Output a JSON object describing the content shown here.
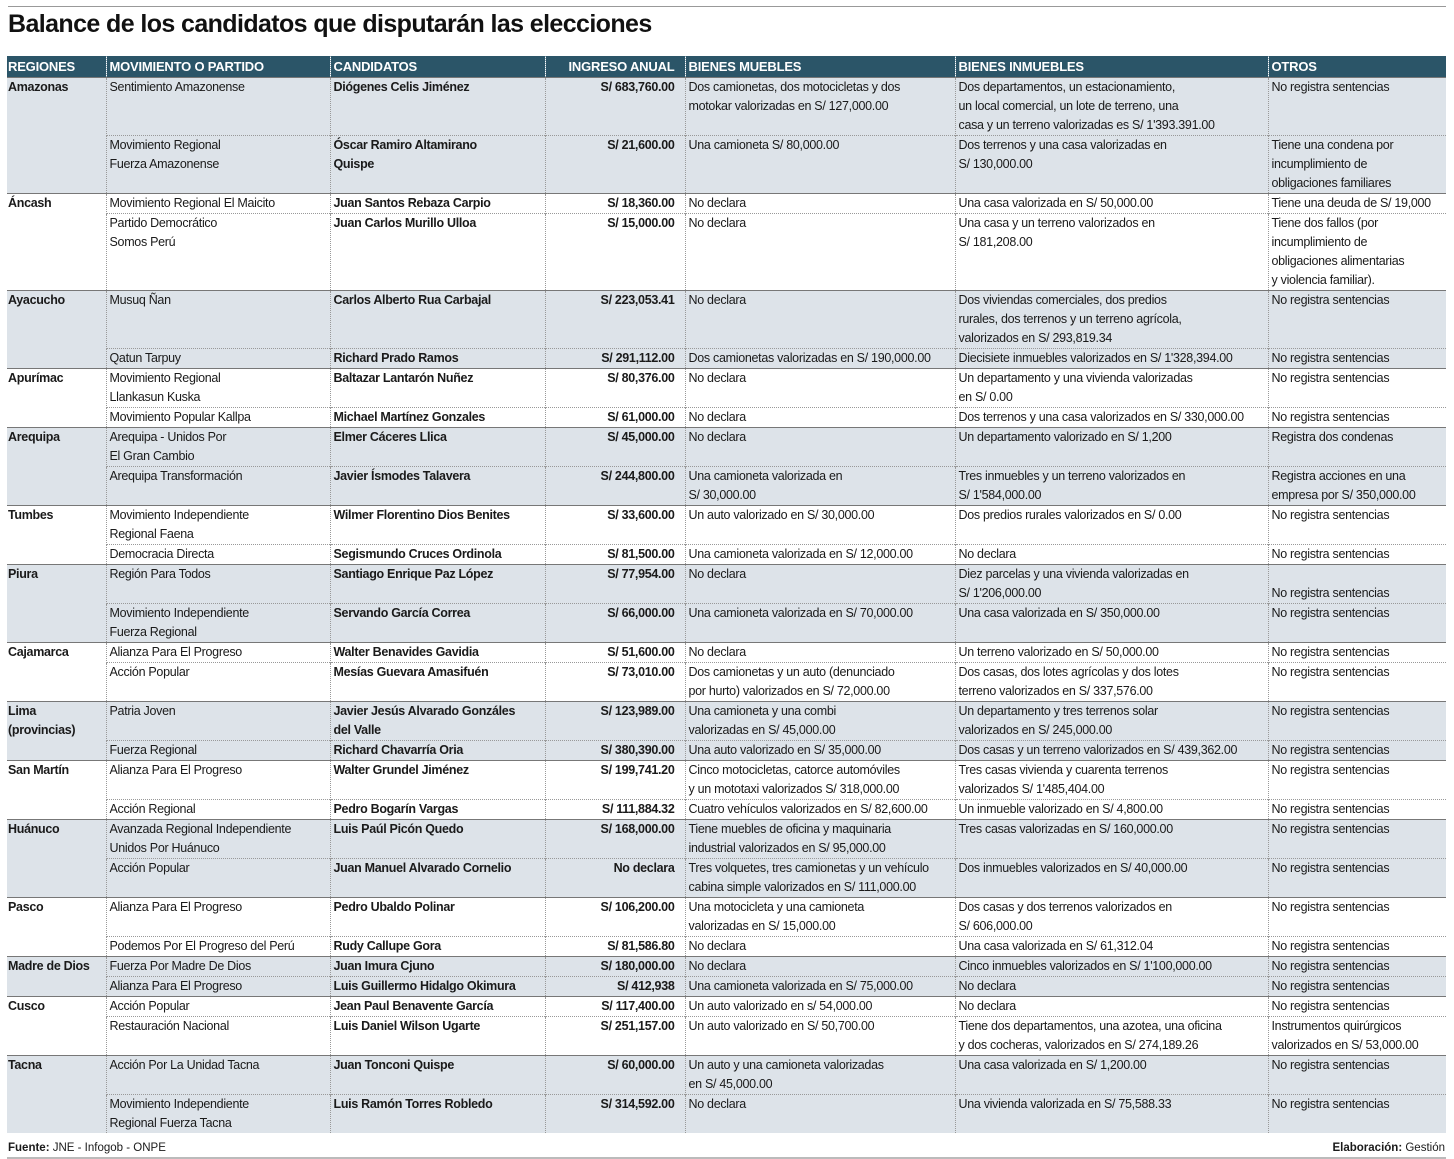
{
  "title": "Balance de los candidatos que disputarán las elecciones",
  "headers": [
    "REGIONES",
    "MOVIMIENTO O PARTIDO",
    "CANDIDATOS",
    "INGRESO ANUAL",
    "BIENES MUEBLES",
    "BIENES INMUEBLES",
    "OTROS"
  ],
  "colors": {
    "header_bg": "#2b5568",
    "shaded_row": "#dde3e9"
  },
  "regions": [
    {
      "name": "Amazonas",
      "rows": [
        {
          "party": "Sentimiento Amazonense",
          "candidate": "Diógenes Celis Jiménez",
          "income": "S/ 683,760.00",
          "muebles": "Dos camionetas, dos motocicletas y dos\nmotokar valorizadas en S/ 127,000.00",
          "inmuebles": "Dos departamentos, un estacionamiento,\nun local comercial, un lote de terreno, una\ncasa y un terreno valorizadas es S/ 1'393.391.00",
          "otros": "No registra sentencias"
        },
        {
          "party": "Movimiento Regional\nFuerza Amazonense",
          "candidate": "Óscar Ramiro Altamirano\nQuispe",
          "income": "S/ 21,600.00",
          "muebles": "Una camioneta S/ 80,000.00",
          "inmuebles": "Dos terrenos y una casa valorizadas en\nS/ 130,000.00",
          "otros": "Tiene una condena por\nincumplimiento de\nobligaciones familiares"
        }
      ]
    },
    {
      "name": "Áncash",
      "rows": [
        {
          "party": "Movimiento Regional El Maicito",
          "candidate": "Juan Santos Rebaza Carpio",
          "income": "S/ 18,360.00",
          "muebles": "No declara",
          "inmuebles": "Una casa valorizada en S/ 50,000.00",
          "otros": "Tiene una deuda de S/ 19,000"
        },
        {
          "party": "Partido Democrático\nSomos Perú",
          "candidate": "Juan Carlos Murillo Ulloa",
          "income": "S/ 15,000.00",
          "muebles": "No declara",
          "inmuebles": "Una casa y un terreno valorizados en\nS/ 181,208.00",
          "otros": "Tiene dos fallos (por\nincumplimiento de\nobligaciones alimentarias\ny violencia familiar)."
        }
      ]
    },
    {
      "name": "Ayacucho",
      "rows": [
        {
          "party": "Musuq Ñan",
          "candidate": "Carlos Alberto Rua Carbajal",
          "income": "S/ 223,053.41",
          "muebles": "No declara",
          "inmuebles": "Dos viviendas comerciales, dos predios\nrurales, dos terrenos y un terreno agrícola,\nvalorizados en S/ 293,819.34",
          "otros": "No registra sentencias"
        },
        {
          "party": "Qatun Tarpuy",
          "candidate": "Richard Prado Ramos",
          "income": "S/ 291,112.00",
          "muebles": "Dos camionetas valorizadas en S/ 190,000.00",
          "inmuebles": "Diecisiete inmuebles valorizados en S/ 1'328,394.00",
          "otros": "No registra sentencias"
        }
      ]
    },
    {
      "name": "Apurímac",
      "rows": [
        {
          "party": "Movimiento Regional\nLlankasun Kuska",
          "candidate": "Baltazar Lantarón Nuñez",
          "income": "S/ 80,376.00",
          "muebles": "No declara",
          "inmuebles": "Un departamento y una vivienda valorizadas\nen S/ 0.00",
          "otros": "No registra sentencias"
        },
        {
          "party": "Movimiento Popular Kallpa",
          "candidate": "Michael Martínez Gonzales",
          "income": "S/ 61,000.00",
          "muebles": "No declara",
          "inmuebles": "Dos terrenos y una casa valorizados en S/ 330,000.00",
          "otros": "No registra sentencias"
        }
      ]
    },
    {
      "name": "Arequipa",
      "rows": [
        {
          "party": "Arequipa - Unidos Por\nEl Gran Cambio",
          "candidate": "Elmer Cáceres Llica",
          "income": "S/ 45,000.00",
          "muebles": "No declara",
          "inmuebles": "Un departamento valorizado en S/ 1,200",
          "otros": "Registra dos condenas"
        },
        {
          "party": "Arequipa Transformación",
          "candidate": "Javier Ísmodes Talavera",
          "income": "S/ 244,800.00",
          "muebles": "Una camioneta valorizada en\nS/ 30,000.00",
          "inmuebles": "Tres inmuebles y un terreno valorizados en\nS/ 1'584,000.00",
          "otros": "Registra acciones en una\nempresa por S/ 350,000.00"
        }
      ]
    },
    {
      "name": "Tumbes",
      "rows": [
        {
          "party": "Movimiento Independiente\nRegional Faena",
          "candidate": "Wilmer Florentino Dios Benites",
          "income": "S/ 33,600.00",
          "muebles": "Un auto valorizado en S/ 30,000.00",
          "inmuebles": "Dos predios rurales valorizados en S/ 0.00",
          "otros": "No registra sentencias"
        },
        {
          "party": "Democracia Directa",
          "candidate": "Segismundo Cruces Ordinola",
          "income": "S/ 81,500.00",
          "muebles": "Una camioneta valorizada en S/ 12,000.00",
          "inmuebles": "No declara",
          "otros": "No registra sentencias"
        }
      ]
    },
    {
      "name": "Piura",
      "rows": [
        {
          "party": "Región Para Todos",
          "candidate": "Santiago Enrique Paz López",
          "income": "S/ 77,954.00",
          "muebles": "No declara",
          "inmuebles": "Diez parcelas y una vivienda valorizadas en\nS/ 1'206,000.00",
          "otros": "\nNo registra sentencias"
        },
        {
          "party": "Movimiento Independiente\nFuerza Regional",
          "candidate": "Servando García Correa",
          "income": "S/ 66,000.00",
          "muebles": "Una camioneta valorizada en S/ 70,000.00",
          "inmuebles": "Una casa valorizada en S/ 350,000.00",
          "otros": "No registra sentencias"
        }
      ]
    },
    {
      "name": "Cajamarca",
      "rows": [
        {
          "party": "Alianza Para El Progreso",
          "candidate": "Walter Benavides Gavidia",
          "income": "S/ 51,600.00",
          "muebles": "No declara",
          "inmuebles": "Un terreno valorizado en S/ 50,000.00",
          "otros": "No registra sentencias"
        },
        {
          "party": "Acción Popular",
          "candidate": "Mesías Guevara Amasifuén",
          "income": "S/ 73,010.00",
          "muebles": "Dos camionetas y un auto (denunciado\npor hurto) valorizados en S/ 72,000.00",
          "inmuebles": "Dos casas, dos lotes agrícolas y dos lotes\nterreno valorizados en S/ 337,576.00",
          "otros": "No registra sentencias"
        }
      ]
    },
    {
      "name": "Lima\n(provincias)",
      "rows": [
        {
          "party": "Patria Joven",
          "candidate": "Javier Jesús Alvarado Gonzáles\ndel Valle",
          "income": "S/ 123,989.00",
          "muebles": "Una camioneta y una combi\nvalorizadas en S/ 45,000.00",
          "inmuebles": "Un departamento y tres terrenos solar\nvalorizados en S/ 245,000.00",
          "otros": "No registra sentencias"
        },
        {
          "party": "Fuerza Regional",
          "candidate": "Richard Chavarría Oria",
          "income": "S/ 380,390.00",
          "muebles": "Una auto valorizado en S/ 35,000.00",
          "inmuebles": "Dos casas y un terreno valorizados en S/ 439,362.00",
          "otros": "No registra sentencias"
        }
      ]
    },
    {
      "name": "San Martín",
      "rows": [
        {
          "party": "Alianza Para El Progreso",
          "candidate": "Walter Grundel Jiménez",
          "income": "S/ 199,741.20",
          "muebles": "Cinco motocicletas, catorce automóviles\ny un mototaxi valorizados S/ 318,000.00",
          "inmuebles": "Tres casas vivienda y cuarenta terrenos\nvalorizados S/ 1'485,404.00",
          "otros": "No registra sentencias"
        },
        {
          "party": "Acción Regional",
          "candidate": "Pedro Bogarín Vargas",
          "income": "S/ 111,884.32",
          "muebles": "Cuatro vehículos valorizados en S/ 82,600.00",
          "inmuebles": "Un inmueble valorizado en S/ 4,800.00",
          "otros": "No registra sentencias"
        }
      ]
    },
    {
      "name": "Huánuco",
      "rows": [
        {
          "party": "Avanzada Regional Independiente\nUnidos Por Huánuco",
          "candidate": "Luis Paúl Picón Quedo",
          "income": "S/ 168,000.00",
          "muebles": "Tiene muebles de oficina y maquinaria\nindustrial valorizados en S/ 95,000.00",
          "inmuebles": "Tres casas valorizadas en  S/ 160,000.00",
          "otros": "No registra sentencias"
        },
        {
          "party": "Acción Popular",
          "candidate": "Juan Manuel Alvarado Cornelio",
          "income": "No declara",
          "muebles": "Tres volquetes, tres camionetas y un vehículo\ncabina simple valorizados en S/ 111,000.00",
          "inmuebles": "Dos inmuebles valorizados en S/ 40,000.00",
          "otros": "No registra sentencias"
        }
      ]
    },
    {
      "name": "Pasco",
      "rows": [
        {
          "party": "Alianza Para El Progreso",
          "candidate": "Pedro Ubaldo Polinar",
          "income": "S/ 106,200.00",
          "muebles": "Una motocicleta y una camioneta\nvalorizadas en S/ 15,000.00",
          "inmuebles": "Dos casas y dos terrenos valorizados en\nS/ 606,000.00",
          "otros": "No registra sentencias"
        },
        {
          "party": "Podemos Por El Progreso del Perú",
          "candidate": "Rudy Callupe Gora",
          "income": "S/ 81,586.80",
          "muebles": "No declara",
          "inmuebles": "Una casa valorizada en S/ 61,312.04",
          "otros": "No registra sentencias"
        }
      ]
    },
    {
      "name": "Madre de Dios",
      "rows": [
        {
          "party": "Fuerza Por Madre De Dios",
          "candidate": "Juan Imura Cjuno",
          "income": "S/ 180,000.00",
          "muebles": "No declara",
          "inmuebles": "Cinco inmuebles valorizados en S/ 1'100,000.00",
          "otros": "No registra sentencias"
        },
        {
          "party": "Alianza Para El Progreso",
          "candidate": "Luis Guillermo Hidalgo Okimura",
          "income": "S/ 412,938",
          "muebles": "Una camioneta valorizada en S/ 75,000.00",
          "inmuebles": "No declara",
          "otros": "No registra sentencias"
        }
      ]
    },
    {
      "name": "Cusco",
      "rows": [
        {
          "party": "Acción Popular",
          "candidate": "Jean Paul Benavente García",
          "income": "S/ 117,400.00",
          "muebles": "Un auto valorizado en s/ 54,000.00",
          "inmuebles": "No declara",
          "otros": "No registra sentencias"
        },
        {
          "party": "Restauración Nacional",
          "candidate": "Luis Daniel Wilson Ugarte",
          "income": "S/ 251,157.00",
          "muebles": "Un auto valorizado en S/ 50,700.00",
          "inmuebles": "Tiene dos departamentos, una azotea, una oficina\ny dos cocheras, valorizados en S/ 274,189.26",
          "otros": "Instrumentos quirúrgicos\nvalorizados en S/ 53,000.00"
        }
      ]
    },
    {
      "name": "Tacna",
      "rows": [
        {
          "party": "Acción Por La Unidad Tacna",
          "candidate": " Juan Tonconi Quispe",
          "income": "S/ 60,000.00",
          "muebles": "Un auto y una camioneta valorizadas\nen S/ 45,000.00",
          "inmuebles": "Una casa valorizada en S/ 1,200.00",
          "otros": "No registra sentencias"
        },
        {
          "party": "Movimiento Independiente\nRegional Fuerza Tacna",
          "candidate": "Luis Ramón Torres Robledo",
          "income": "S/ 314,592.00",
          "muebles": "No declara",
          "inmuebles": "Una vivienda valorizada en  S/ 75,588.33",
          "otros": "No registra sentencias"
        }
      ]
    }
  ],
  "footer": {
    "source_label": "Fuente:",
    "source": "JNE - Infogob - ONPE",
    "credit_label": "Elaboración:",
    "credit": "Gestión"
  }
}
